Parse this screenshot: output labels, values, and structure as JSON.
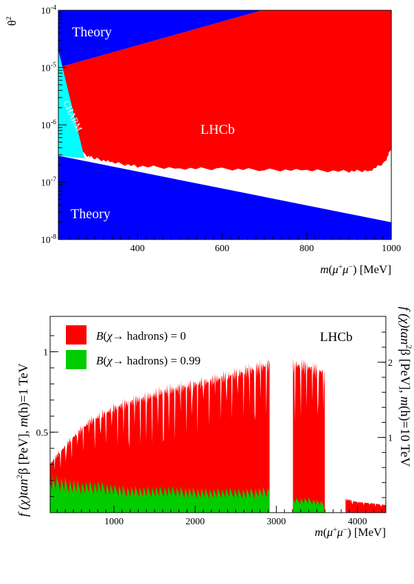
{
  "chart_data": [
    {
      "type": "area",
      "xlabel": "m(μ⁺μ⁻) [MeV]",
      "xlabel_parts": {
        "m": "m",
        "lp": "(",
        "mu1": "μ",
        "sup1": "+",
        "mu2": "μ",
        "sup2": "−",
        "rp": ")",
        "unit": " [MeV]"
      },
      "ylabel": "θ²",
      "ylabel_parts": {
        "base": "θ",
        "exp": "2"
      },
      "xlim": [
        213,
        1000
      ],
      "ylim": [
        1e-08,
        0.0001
      ],
      "yscale": "log",
      "xticks": [
        "400",
        "600",
        "800",
        "1000"
      ],
      "yticks": [
        {
          "b": "10",
          "e": "-8"
        },
        {
          "b": "10",
          "e": "-7"
        },
        {
          "b": "10",
          "e": "-6"
        },
        {
          "b": "10",
          "e": "-5"
        },
        {
          "b": "10",
          "e": "-4"
        }
      ],
      "region_labels": {
        "theory_top": "Theory",
        "theory_bottom": "Theory",
        "charm": "CHARM",
        "lhcb": "LHCb"
      },
      "regions": [
        {
          "name": "Theory (upper)",
          "color": "#0000ff",
          "polygon": [
            [
              213,
              0.0001
            ],
            [
              695,
              0.0001
            ],
            [
              213,
              1e-05
            ]
          ]
        },
        {
          "name": "Theory (lower)",
          "color": "#0000ff",
          "polygon": [
            [
              213,
              2.9e-07
            ],
            [
              1000,
              2e-08
            ],
            [
              1000,
              1e-08
            ],
            [
              213,
              1e-08
            ]
          ]
        },
        {
          "name": "CHARM",
          "color": "#00ffff",
          "polygon": [
            [
              213,
              2e-05
            ],
            [
              275,
              2.6e-07
            ],
            [
              213,
              2.9e-07
            ]
          ]
        },
        {
          "name": "LHCb excluded",
          "color": "#ff0000",
          "upper": [
            [
              213,
              1e-05
            ],
            [
              695,
              0.0001
            ],
            [
              1000,
              0.0001
            ]
          ],
          "lower": [
            [
              230,
              1.3e-06
            ],
            [
              260,
              5.5e-07
            ],
            [
              275,
              3e-07
            ],
            [
              300,
              2.6e-07
            ],
            [
              340,
              2.2e-07
            ],
            [
              400,
              1.9e-07
            ],
            [
              500,
              1.75e-07
            ],
            [
              600,
              1.7e-07
            ],
            [
              700,
              1.65e-07
            ],
            [
              800,
              1.6e-07
            ],
            [
              900,
              1.55e-07
            ],
            [
              950,
              1.6e-07
            ],
            [
              985,
              2.2e-07
            ],
            [
              1000,
              4e-07
            ]
          ]
        }
      ]
    },
    {
      "type": "area",
      "xlabel": "m(μ⁺μ⁻) [MeV]",
      "ylabel_left": "f (χ)tan²β [PeV], m(h)=1 TeV",
      "ylabel_right": "f (χ)tan²β [PeV], m(h)=10 TeV",
      "ylabel_left_parts": {
        "pre": "f (χ)tan",
        "exp": "2",
        "mid": "β  [PeV], ",
        "m": "m",
        "post": "(h)=1 TeV"
      },
      "ylabel_right_parts": {
        "pre": "f (χ)tan",
        "exp": "2",
        "mid": "β [PeV], ",
        "m": "m",
        "post": "(h)=10 TeV"
      },
      "xlim": [
        213,
        4350
      ],
      "ylim": [
        0,
        1.22
      ],
      "y2lim": [
        0,
        2.61
      ],
      "xticks": [
        "1000",
        "2000",
        "3000",
        "4000"
      ],
      "yticks": [
        "0.5",
        "1"
      ],
      "y2ticks": [
        "1",
        "2"
      ],
      "experiment_label": "LHCb",
      "legend": {
        "position": "top-left",
        "entries": [
          {
            "label": "B(χ → hadrons) = 0",
            "color": "#ff0000",
            "parts": {
              "b": "B",
              "l": "(",
              "chi": "χ",
              "arrow": "→",
              "rest": " hadrons) = 0"
            }
          },
          {
            "label": "B(χ → hadrons) = 0.99",
            "color": "#00cc00",
            "parts": {
              "b": "B",
              "l": "(",
              "chi": "χ",
              "arrow": "→",
              "rest": " hadrons) = 0.99"
            }
          }
        ]
      },
      "series": [
        {
          "name": "B(χ → hadrons) = 0",
          "color": "#ff0000",
          "x": [
            213,
            300,
            400,
            500,
            600,
            700,
            800,
            900,
            1000,
            1200,
            1400,
            1600,
            1800,
            2000,
            2200,
            2400,
            2600,
            2800,
            2920,
            3200,
            3300,
            3400,
            3500,
            3580,
            3850,
            4000,
            4200,
            4350
          ],
          "y": [
            0.32,
            0.38,
            0.44,
            0.5,
            0.55,
            0.6,
            0.63,
            0.66,
            0.69,
            0.73,
            0.76,
            0.8,
            0.82,
            0.85,
            0.87,
            0.9,
            0.93,
            0.96,
            0.98,
            0.98,
            0.97,
            0.96,
            0.94,
            0.93,
            0.09,
            0.07,
            0.06,
            0.05
          ]
        },
        {
          "name": "B(χ → hadrons) = 0.99",
          "color": "#00cc00",
          "x": [
            213,
            400,
            600,
            800,
            1000,
            1400,
            1800,
            2200,
            2600,
            2920,
            3200,
            3400,
            3580,
            3600,
            4350
          ],
          "y": [
            0.2,
            0.19,
            0.17,
            0.17,
            0.15,
            0.14,
            0.14,
            0.13,
            0.13,
            0.14,
            0.08,
            0.08,
            0.06,
            0.0,
            0.0
          ]
        }
      ],
      "gaps": [
        [
          2920,
          3200
        ],
        [
          3600,
          3850
        ]
      ]
    }
  ]
}
